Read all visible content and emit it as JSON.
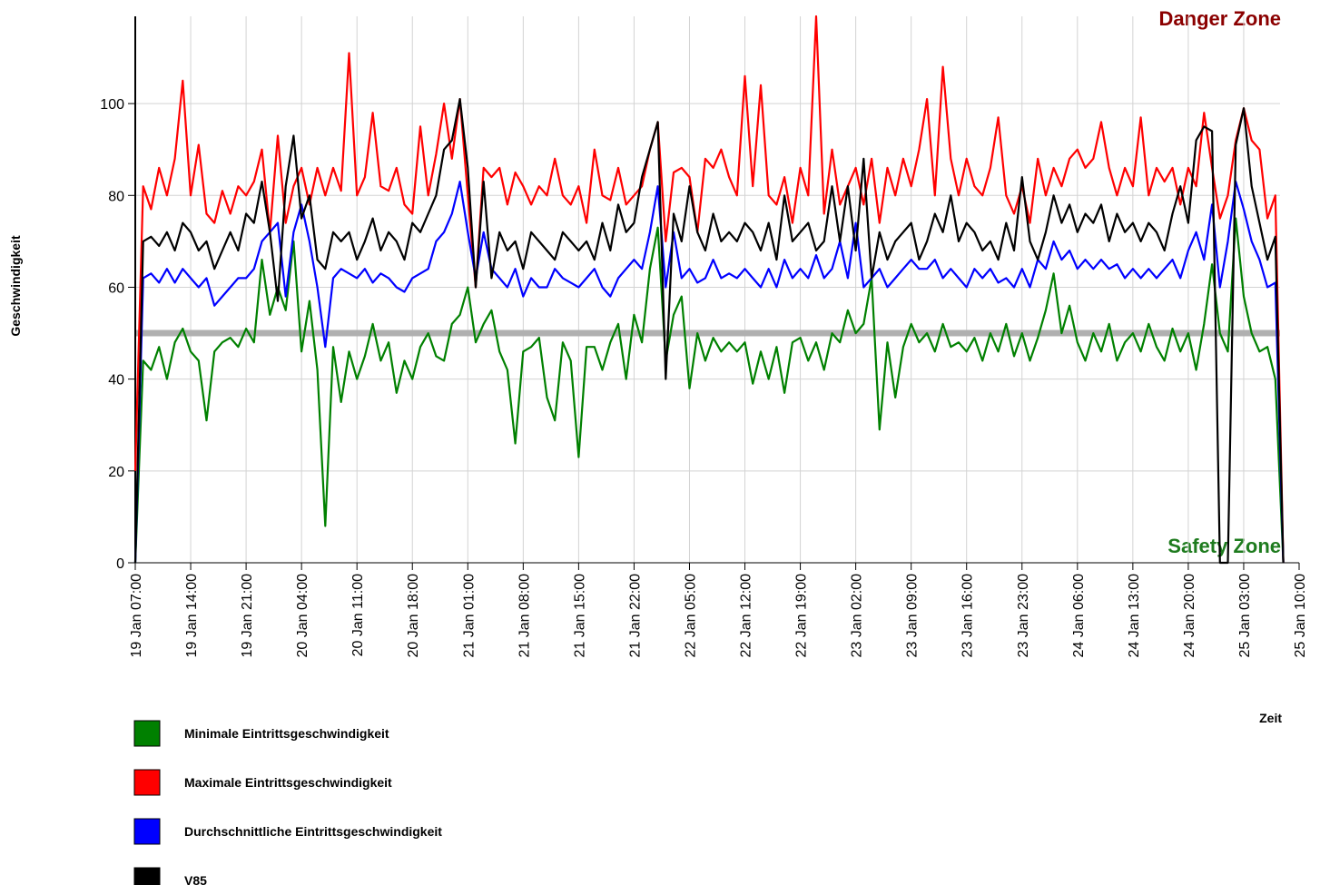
{
  "chart_data": {
    "type": "line",
    "annotations": {
      "danger": "Danger Zone",
      "safety": "Safety Zone"
    },
    "xlabel": "Zeit",
    "ylabel": "Geschwindigkeit",
    "ylim": [
      0,
      119
    ],
    "yticks": [
      0,
      20,
      40,
      60,
      80,
      100
    ],
    "xlim": [
      "19 Jan 07:00",
      "25 Jan 10:00"
    ],
    "xticks": [
      "19 Jan 07:00",
      "19 Jan 14:00",
      "19 Jan 21:00",
      "20 Jan 04:00",
      "20 Jan 11:00",
      "20 Jan 18:00",
      "21 Jan 01:00",
      "21 Jan 08:00",
      "21 Jan 15:00",
      "21 Jan 22:00",
      "22 Jan 05:00",
      "22 Jan 12:00",
      "22 Jan 19:00",
      "23 Jan 02:00",
      "23 Jan 09:00",
      "23 Jan 16:00",
      "23 Jan 23:00",
      "24 Jan 06:00",
      "24 Jan 13:00",
      "24 Jan 20:00",
      "25 Jan 03:00",
      "25 Jan 10:00"
    ],
    "grid": true,
    "threshold": {
      "value": 50,
      "color": "#b0b0b0"
    },
    "x": [
      "19 Jan 07:00",
      "19 Jan 08:00",
      "19 Jan 09:00",
      "19 Jan 10:00",
      "19 Jan 11:00",
      "19 Jan 12:00",
      "19 Jan 13:00",
      "19 Jan 14:00",
      "19 Jan 15:00",
      "19 Jan 16:00",
      "19 Jan 17:00",
      "19 Jan 18:00",
      "19 Jan 19:00",
      "19 Jan 20:00",
      "19 Jan 21:00",
      "19 Jan 22:00",
      "19 Jan 23:00",
      "20 Jan 00:00",
      "20 Jan 01:00",
      "20 Jan 02:00",
      "20 Jan 03:00",
      "20 Jan 04:00",
      "20 Jan 05:00",
      "20 Jan 06:00",
      "20 Jan 07:00",
      "20 Jan 08:00",
      "20 Jan 09:00",
      "20 Jan 10:00",
      "20 Jan 11:00",
      "20 Jan 12:00",
      "20 Jan 13:00",
      "20 Jan 14:00",
      "20 Jan 15:00",
      "20 Jan 16:00",
      "20 Jan 17:00",
      "20 Jan 18:00",
      "20 Jan 19:00",
      "20 Jan 20:00",
      "20 Jan 21:00",
      "20 Jan 22:00",
      "20 Jan 23:00",
      "21 Jan 00:00",
      "21 Jan 01:00",
      "21 Jan 02:00",
      "21 Jan 03:00",
      "21 Jan 04:00",
      "21 Jan 05:00",
      "21 Jan 06:00",
      "21 Jan 07:00",
      "21 Jan 08:00",
      "21 Jan 09:00",
      "21 Jan 10:00",
      "21 Jan 11:00",
      "21 Jan 12:00",
      "21 Jan 13:00",
      "21 Jan 14:00",
      "21 Jan 15:00",
      "21 Jan 16:00",
      "21 Jan 17:00",
      "21 Jan 18:00",
      "21 Jan 19:00",
      "21 Jan 20:00",
      "21 Jan 21:00",
      "21 Jan 22:00",
      "21 Jan 23:00",
      "22 Jan 00:00",
      "22 Jan 01:00",
      "22 Jan 02:00",
      "22 Jan 03:00",
      "22 Jan 04:00",
      "22 Jan 05:00",
      "22 Jan 06:00",
      "22 Jan 07:00",
      "22 Jan 08:00",
      "22 Jan 09:00",
      "22 Jan 10:00",
      "22 Jan 11:00",
      "22 Jan 12:00",
      "22 Jan 13:00",
      "22 Jan 14:00",
      "22 Jan 15:00",
      "22 Jan 16:00",
      "22 Jan 17:00",
      "22 Jan 18:00",
      "22 Jan 19:00",
      "22 Jan 20:00",
      "22 Jan 21:00",
      "22 Jan 22:00",
      "22 Jan 23:00",
      "23 Jan 00:00",
      "23 Jan 01:00",
      "23 Jan 02:00",
      "23 Jan 03:00",
      "23 Jan 04:00",
      "23 Jan 05:00",
      "23 Jan 06:00",
      "23 Jan 07:00",
      "23 Jan 08:00",
      "23 Jan 09:00",
      "23 Jan 10:00",
      "23 Jan 11:00",
      "23 Jan 12:00",
      "23 Jan 13:00",
      "23 Jan 14:00",
      "23 Jan 15:00",
      "23 Jan 16:00",
      "23 Jan 17:00",
      "23 Jan 18:00",
      "23 Jan 19:00",
      "23 Jan 20:00",
      "23 Jan 21:00",
      "23 Jan 22:00",
      "23 Jan 23:00",
      "24 Jan 00:00",
      "24 Jan 01:00",
      "24 Jan 02:00",
      "24 Jan 03:00",
      "24 Jan 04:00",
      "24 Jan 05:00",
      "24 Jan 06:00",
      "24 Jan 07:00",
      "24 Jan 08:00",
      "24 Jan 09:00",
      "24 Jan 10:00",
      "24 Jan 11:00",
      "24 Jan 12:00",
      "24 Jan 13:00",
      "24 Jan 14:00",
      "24 Jan 15:00",
      "24 Jan 16:00",
      "24 Jan 17:00",
      "24 Jan 18:00",
      "24 Jan 19:00",
      "24 Jan 20:00",
      "24 Jan 21:00",
      "24 Jan 22:00",
      "24 Jan 23:00",
      "25 Jan 00:00",
      "25 Jan 01:00",
      "25 Jan 02:00",
      "25 Jan 03:00",
      "25 Jan 04:00",
      "25 Jan 05:00",
      "25 Jan 06:00",
      "25 Jan 07:00",
      "25 Jan 08:00"
    ],
    "series": [
      {
        "name": "Minimale Eintrittsgeschwindigkeit",
        "color": "#008000",
        "values": [
          0,
          44,
          42,
          47,
          40,
          48,
          51,
          46,
          44,
          31,
          46,
          48,
          49,
          47,
          51,
          48,
          66,
          54,
          60,
          55,
          70,
          46,
          57,
          42,
          8,
          47,
          35,
          46,
          40,
          45,
          52,
          44,
          48,
          37,
          44,
          40,
          47,
          50,
          45,
          44,
          52,
          54,
          60,
          48,
          52,
          55,
          46,
          42,
          26,
          46,
          47,
          49,
          36,
          31,
          48,
          44,
          23,
          47,
          47,
          42,
          48,
          52,
          40,
          54,
          48,
          64,
          73,
          44,
          54,
          58,
          38,
          50,
          44,
          49,
          46,
          48,
          46,
          48,
          39,
          46,
          40,
          47,
          37,
          48,
          49,
          44,
          48,
          42,
          50,
          48,
          55,
          50,
          52,
          62,
          29,
          48,
          36,
          47,
          52,
          48,
          50,
          46,
          52,
          47,
          48,
          46,
          49,
          44,
          50,
          46,
          52,
          45,
          50,
          44,
          49,
          55,
          63,
          50,
          56,
          48,
          44,
          50,
          46,
          52,
          44,
          48,
          50,
          46,
          52,
          47,
          44,
          51,
          46,
          50,
          42,
          52,
          65,
          50,
          46,
          75,
          58,
          50,
          46,
          47,
          40,
          0
        ]
      },
      {
        "name": "Maximale Eintrittsgeschwindigkeit",
        "color": "#ff0000",
        "values": [
          20,
          82,
          77,
          86,
          80,
          88,
          105,
          80,
          91,
          76,
          74,
          81,
          76,
          82,
          80,
          83,
          90,
          72,
          93,
          74,
          82,
          86,
          78,
          86,
          80,
          86,
          81,
          111,
          80,
          84,
          98,
          82,
          81,
          86,
          78,
          76,
          95,
          80,
          89,
          100,
          88,
          101,
          80,
          60,
          86,
          84,
          86,
          78,
          85,
          82,
          78,
          82,
          80,
          88,
          80,
          78,
          82,
          74,
          90,
          80,
          79,
          86,
          78,
          80,
          82,
          90,
          96,
          70,
          85,
          86,
          84,
          72,
          88,
          86,
          90,
          84,
          80,
          106,
          82,
          104,
          80,
          78,
          84,
          74,
          86,
          80,
          119,
          76,
          90,
          78,
          82,
          86,
          78,
          88,
          74,
          86,
          80,
          88,
          82,
          90,
          101,
          80,
          108,
          88,
          80,
          88,
          82,
          80,
          86,
          97,
          80,
          76,
          82,
          74,
          88,
          80,
          86,
          82,
          88,
          90,
          86,
          88,
          96,
          86,
          80,
          86,
          82,
          97,
          80,
          86,
          83,
          86,
          78,
          86,
          82,
          98,
          86,
          75,
          80,
          92,
          99,
          92,
          90,
          75,
          80,
          0
        ]
      },
      {
        "name": "Durchschnittliche Eintrittsgeschwindigkeit",
        "color": "#0000ff",
        "values": [
          0,
          62,
          63,
          61,
          64,
          61,
          64,
          62,
          60,
          62,
          56,
          58,
          60,
          62,
          62,
          64,
          70,
          72,
          74,
          58,
          72,
          78,
          70,
          60,
          47,
          62,
          64,
          63,
          62,
          64,
          61,
          63,
          62,
          60,
          59,
          62,
          63,
          64,
          70,
          72,
          76,
          83,
          72,
          62,
          72,
          64,
          62,
          60,
          64,
          58,
          62,
          60,
          60,
          64,
          62,
          61,
          60,
          62,
          64,
          60,
          58,
          62,
          64,
          66,
          64,
          72,
          82,
          60,
          72,
          62,
          64,
          61,
          62,
          66,
          62,
          63,
          62,
          64,
          62,
          60,
          64,
          60,
          66,
          62,
          64,
          62,
          67,
          62,
          64,
          70,
          62,
          74,
          60,
          62,
          64,
          60,
          62,
          64,
          66,
          64,
          64,
          66,
          62,
          64,
          62,
          60,
          64,
          62,
          64,
          61,
          62,
          60,
          64,
          60,
          66,
          64,
          70,
          66,
          68,
          64,
          66,
          64,
          66,
          64,
          65,
          62,
          64,
          62,
          64,
          62,
          64,
          66,
          62,
          68,
          72,
          66,
          78,
          60,
          70,
          83,
          77,
          70,
          66,
          60,
          61,
          0
        ]
      },
      {
        "name": "V85",
        "color": "#000000",
        "values": [
          0,
          70,
          71,
          69,
          72,
          68,
          74,
          72,
          68,
          70,
          64,
          68,
          72,
          68,
          76,
          74,
          83,
          72,
          57,
          82,
          93,
          75,
          80,
          66,
          64,
          72,
          70,
          72,
          66,
          70,
          75,
          68,
          72,
          70,
          66,
          74,
          72,
          76,
          80,
          90,
          92,
          101,
          86,
          60,
          83,
          62,
          72,
          68,
          70,
          64,
          72,
          70,
          68,
          66,
          72,
          70,
          68,
          70,
          66,
          74,
          68,
          78,
          72,
          74,
          84,
          90,
          96,
          40,
          76,
          70,
          82,
          72,
          68,
          76,
          70,
          72,
          70,
          74,
          72,
          68,
          74,
          66,
          80,
          70,
          72,
          74,
          68,
          70,
          82,
          70,
          82,
          68,
          88,
          62,
          72,
          66,
          70,
          72,
          74,
          66,
          70,
          76,
          72,
          80,
          70,
          74,
          72,
          68,
          70,
          66,
          74,
          68,
          84,
          70,
          66,
          72,
          80,
          74,
          78,
          72,
          76,
          74,
          78,
          70,
          76,
          72,
          74,
          70,
          74,
          72,
          68,
          76,
          82,
          74,
          92,
          95,
          94,
          0,
          0,
          91,
          99,
          82,
          74,
          66,
          71,
          0
        ]
      }
    ]
  }
}
